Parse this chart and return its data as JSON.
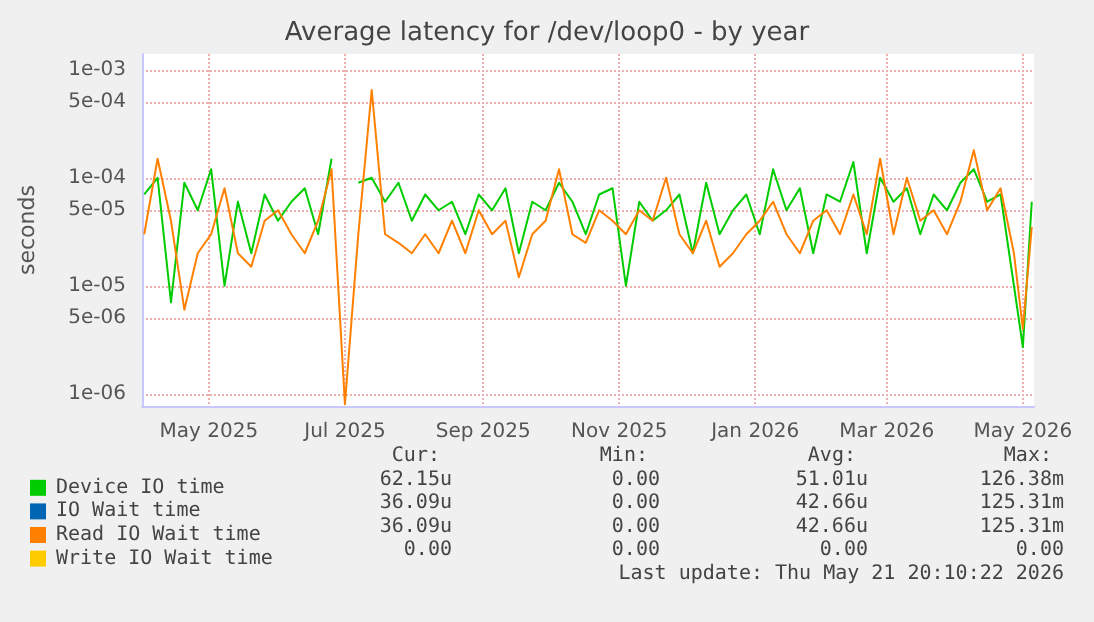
{
  "chart_data": {
    "type": "line",
    "title": "Average latency for /dev/loop0 - by year",
    "ylabel": "seconds",
    "x": [
      "2025-04-02",
      "2025-04-08",
      "2025-04-14",
      "2025-04-20",
      "2025-04-26",
      "2025-05-02",
      "2025-05-08",
      "2025-05-14",
      "2025-05-20",
      "2025-05-26",
      "2025-06-01",
      "2025-06-07",
      "2025-06-13",
      "2025-06-19",
      "2025-06-25",
      "2025-07-01",
      "2025-07-07",
      "2025-07-13",
      "2025-07-19",
      "2025-07-25",
      "2025-07-31",
      "2025-08-06",
      "2025-08-12",
      "2025-08-18",
      "2025-08-24",
      "2025-08-30",
      "2025-09-05",
      "2025-09-11",
      "2025-09-17",
      "2025-09-23",
      "2025-09-29",
      "2025-10-05",
      "2025-10-11",
      "2025-10-17",
      "2025-10-23",
      "2025-10-29",
      "2025-11-04",
      "2025-11-10",
      "2025-11-16",
      "2025-11-22",
      "2025-11-28",
      "2025-12-04",
      "2025-12-10",
      "2025-12-16",
      "2025-12-22",
      "2025-12-28",
      "2026-01-03",
      "2026-01-09",
      "2026-01-15",
      "2026-01-21",
      "2026-01-27",
      "2026-02-02",
      "2026-02-08",
      "2026-02-14",
      "2026-02-20",
      "2026-02-26",
      "2026-03-04",
      "2026-03-10",
      "2026-03-16",
      "2026-03-22",
      "2026-03-28",
      "2026-04-03",
      "2026-04-09",
      "2026-04-15",
      "2026-04-21",
      "2026-04-27",
      "2026-05-01",
      "2026-05-05"
    ],
    "series": [
      {
        "name": "Device IO time",
        "color": "#00cc00",
        "values": [
          7e-05,
          0.0001,
          7e-06,
          9e-05,
          5e-05,
          0.00012,
          1e-05,
          6e-05,
          2e-05,
          7e-05,
          4e-05,
          6e-05,
          8e-05,
          3e-05,
          0.00015,
          null,
          9e-05,
          0.0001,
          6e-05,
          9e-05,
          4e-05,
          7e-05,
          5e-05,
          6e-05,
          3e-05,
          7e-05,
          5e-05,
          8e-05,
          2e-05,
          6e-05,
          5e-05,
          9e-05,
          6e-05,
          3e-05,
          7e-05,
          8e-05,
          1e-05,
          6e-05,
          4e-05,
          5e-05,
          7e-05,
          2e-05,
          9e-05,
          3e-05,
          5e-05,
          7e-05,
          3e-05,
          0.00012,
          5e-05,
          8e-05,
          2e-05,
          7e-05,
          6e-05,
          0.00014,
          2e-05,
          0.0001,
          6e-05,
          8e-05,
          3e-05,
          7e-05,
          5e-05,
          9e-05,
          0.00012,
          6e-05,
          7e-05,
          1e-05,
          2.7e-06,
          6e-05
        ]
      },
      {
        "name": "IO Wait time",
        "color": "#0066b3",
        "values": [
          null,
          null,
          null,
          null,
          null,
          null,
          null,
          null,
          null,
          null,
          null,
          null,
          null,
          null,
          null,
          null,
          null,
          null,
          null,
          null,
          null,
          null,
          null,
          null,
          null,
          null,
          null,
          null,
          null,
          null,
          null,
          null,
          null,
          null,
          null,
          null,
          null,
          null,
          null,
          null,
          null,
          null,
          null,
          null,
          null,
          null,
          null,
          null,
          null,
          null,
          null,
          null,
          null,
          null,
          null,
          null,
          null,
          null,
          null,
          null,
          null,
          null,
          null,
          null,
          null,
          null,
          null,
          null
        ]
      },
      {
        "name": "Read IO Wait time",
        "color": "#ff8000",
        "values": [
          3e-05,
          0.00015,
          4e-05,
          6e-06,
          2e-05,
          3e-05,
          8e-05,
          2e-05,
          1.5e-05,
          4e-05,
          5e-05,
          3e-05,
          2e-05,
          4e-05,
          0.00012,
          8e-07,
          3e-05,
          0.00065,
          3e-05,
          2.5e-05,
          2e-05,
          3e-05,
          2e-05,
          4e-05,
          2e-05,
          5e-05,
          3e-05,
          4e-05,
          1.2e-05,
          3e-05,
          4e-05,
          0.00012,
          3e-05,
          2.5e-05,
          5e-05,
          4e-05,
          3e-05,
          5e-05,
          4e-05,
          0.0001,
          3e-05,
          2e-05,
          4e-05,
          1.5e-05,
          2e-05,
          3e-05,
          4e-05,
          6e-05,
          3e-05,
          2e-05,
          4e-05,
          5e-05,
          3e-05,
          7e-05,
          3e-05,
          0.00015,
          3e-05,
          0.0001,
          4e-05,
          5e-05,
          3e-05,
          6e-05,
          0.00018,
          5e-05,
          8e-05,
          2e-05,
          4e-06,
          3.5e-05
        ]
      },
      {
        "name": "Write IO Wait time",
        "color": "#ffcc00",
        "values": [
          null,
          null,
          null,
          null,
          null,
          null,
          null,
          null,
          null,
          null,
          null,
          null,
          null,
          null,
          null,
          null,
          null,
          null,
          null,
          null,
          null,
          null,
          null,
          null,
          null,
          null,
          null,
          null,
          null,
          null,
          null,
          null,
          null,
          null,
          null,
          null,
          null,
          null,
          null,
          null,
          null,
          null,
          null,
          null,
          null,
          null,
          null,
          null,
          null,
          null,
          null,
          null,
          null,
          null,
          null,
          null,
          null,
          null,
          null,
          null,
          null,
          null,
          null,
          null,
          null,
          null,
          null,
          null
        ]
      }
    ],
    "xlim": [
      "2025-04-01",
      "2026-05-06"
    ],
    "xticks": [
      {
        "value": "2025-05",
        "label": "May 2025"
      },
      {
        "value": "2025-07",
        "label": "Jul 2025"
      },
      {
        "value": "2025-09",
        "label": "Sep 2025"
      },
      {
        "value": "2025-11",
        "label": "Nov 2025"
      },
      {
        "value": "2026-01",
        "label": "Jan 2026"
      },
      {
        "value": "2026-03",
        "label": "Mar 2026"
      },
      {
        "value": "2026-05",
        "label": "May 2026"
      }
    ],
    "log": "y",
    "ylim": [
      7.7e-07,
      0.0014
    ],
    "yticks": [
      {
        "value": 1e-06,
        "label": "1e-06"
      },
      {
        "value": 5e-06,
        "label": "5e-06"
      },
      {
        "value": 1e-05,
        "label": "1e-05"
      },
      {
        "value": 5e-05,
        "label": "5e-05"
      },
      {
        "value": 0.0001,
        "label": "1e-04"
      },
      {
        "value": 0.0005,
        "label": "5e-04"
      },
      {
        "value": 0.001,
        "label": "1e-03"
      }
    ],
    "grid": true,
    "legend": "bottom left",
    "marker": "none",
    "line_style": "solid",
    "annotations": [
      "Cur:",
      "Min:",
      "Avg:",
      "Max:",
      "62.15u",
      "0.00",
      "51.01u",
      "126.38m",
      "36.09u",
      "0.00",
      "42.66u",
      "125.31m",
      "36.09u",
      "0.00",
      "42.66u",
      "125.31m",
      "0.00",
      "0.00",
      "0.00",
      "0.00",
      "Last update: Thu May 21 20:10:22 2026"
    ]
  }
}
